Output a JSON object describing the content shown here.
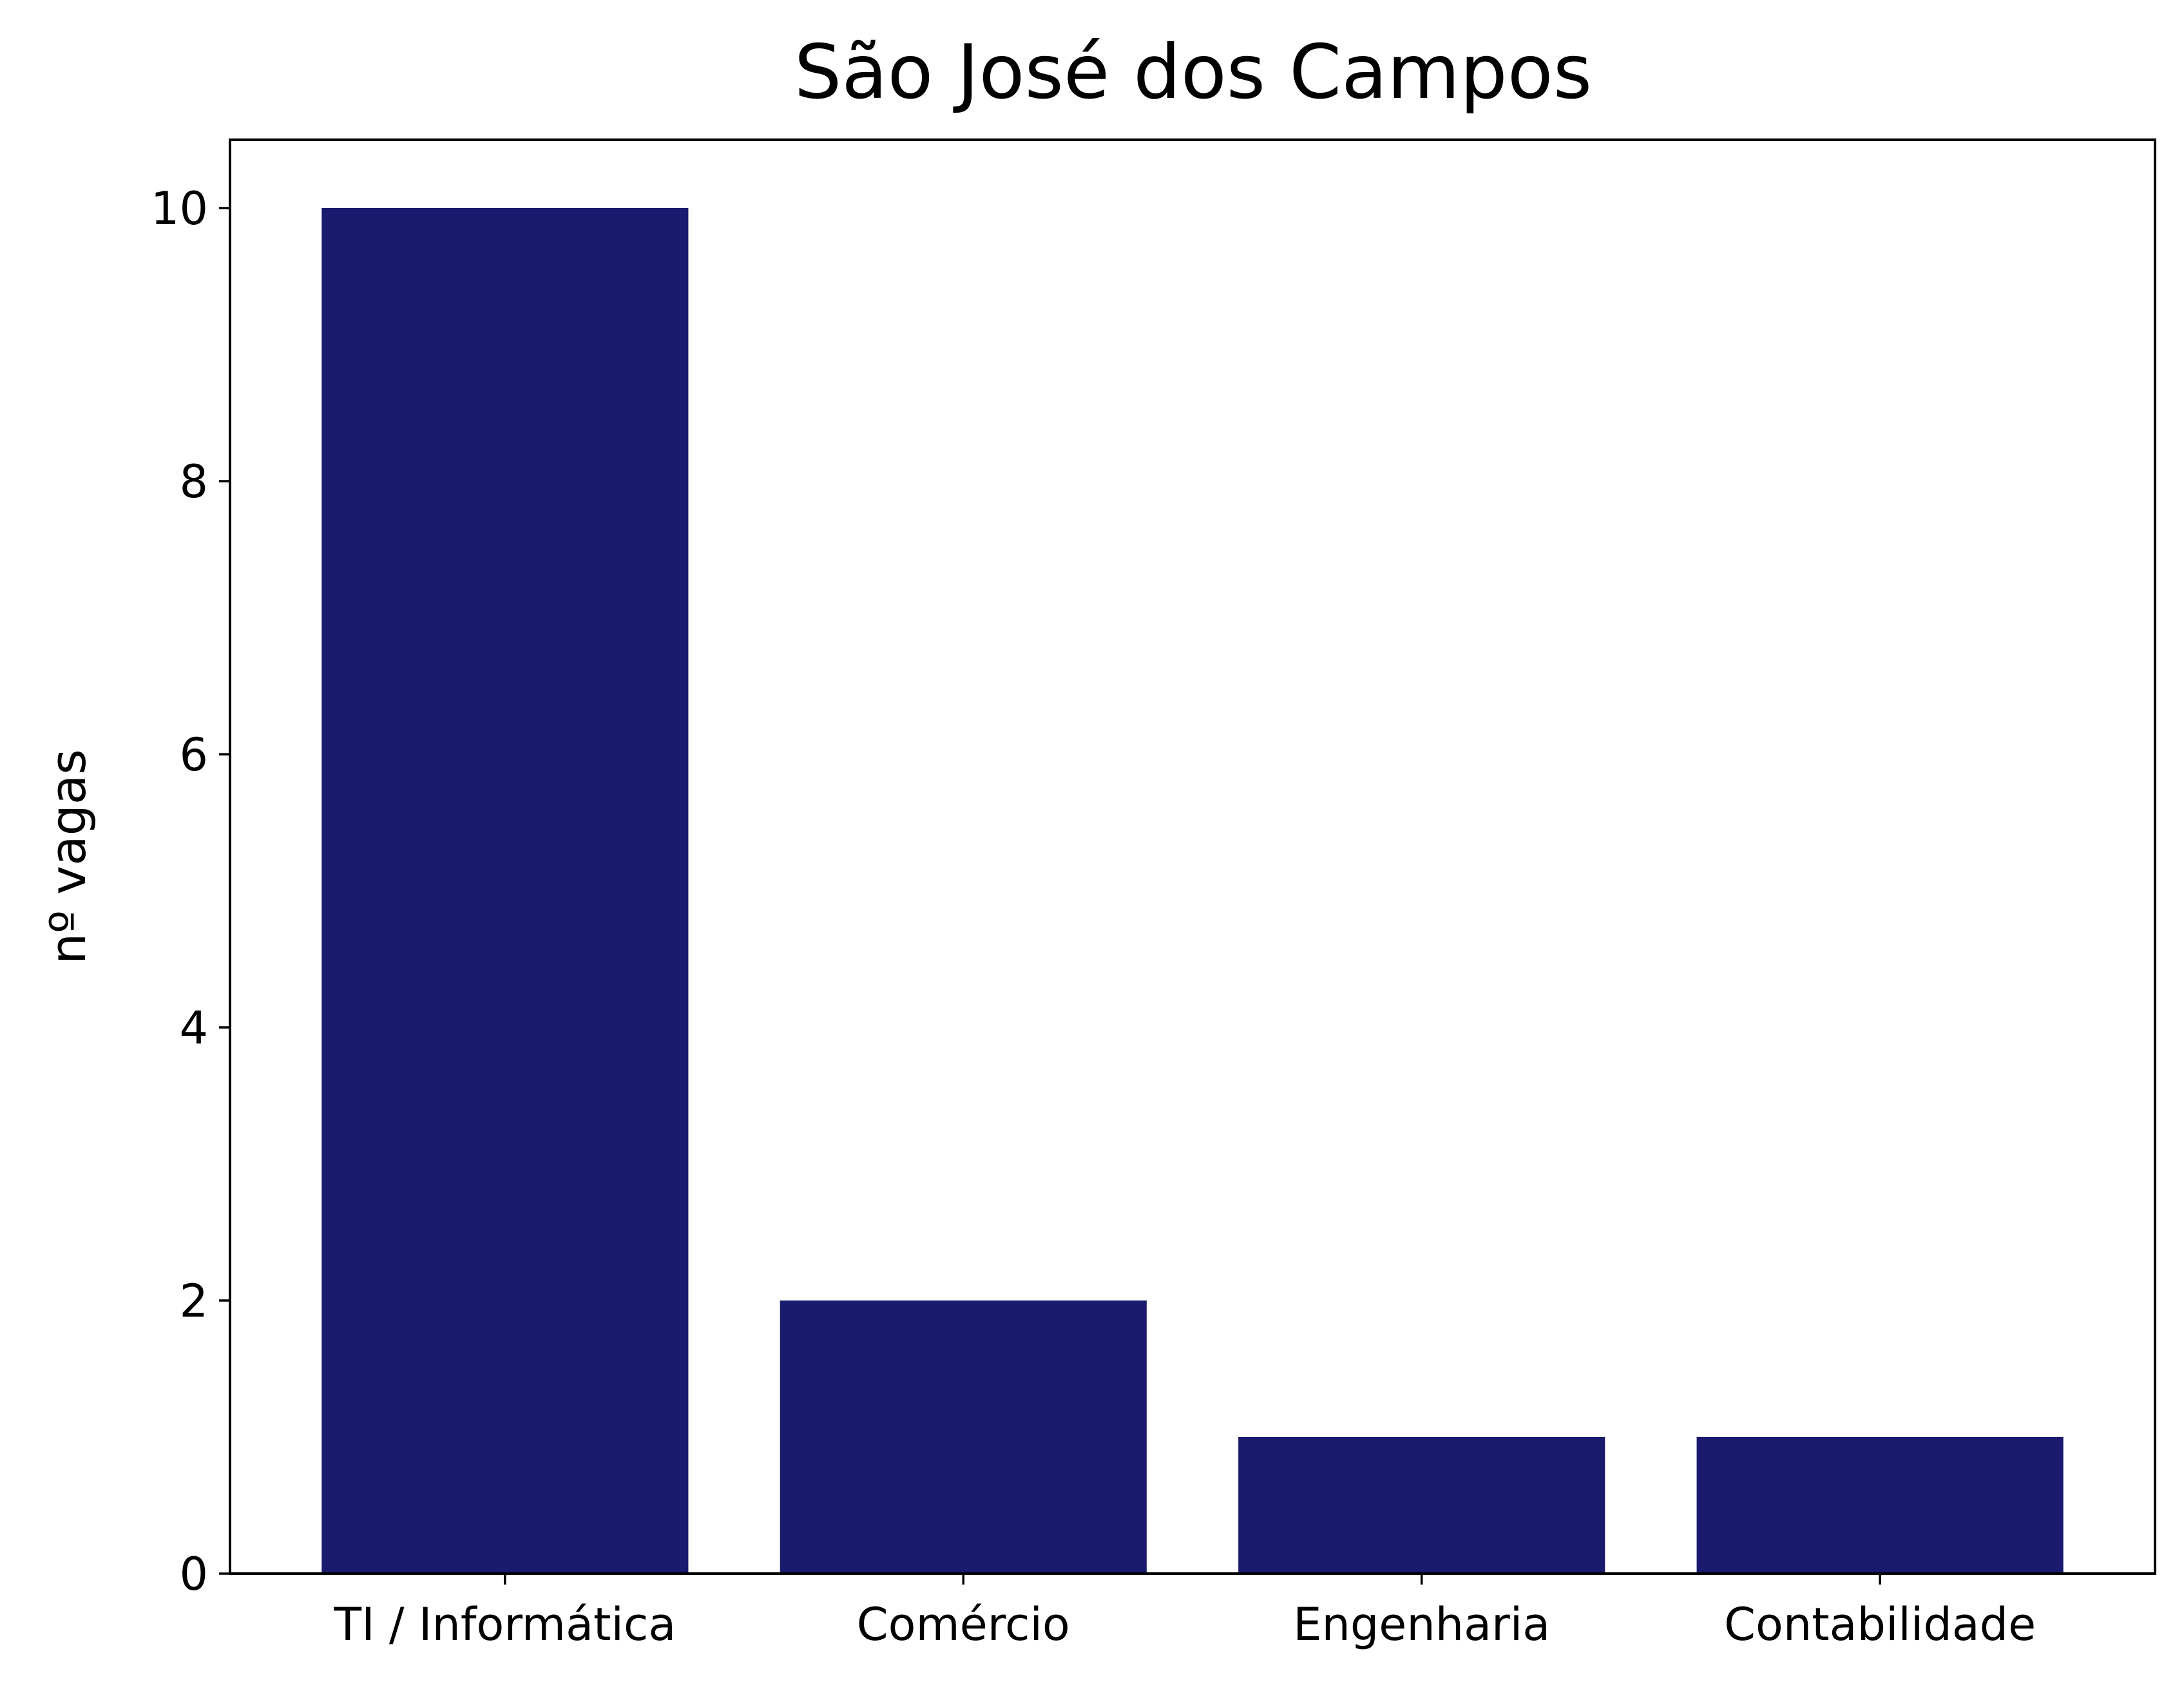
{
  "chart_data": {
    "type": "bar",
    "title": "São José dos Campos",
    "xlabel": "",
    "ylabel": "nº vagas",
    "categories": [
      "TI / Informática",
      "Comércio",
      "Engenharia",
      "Contabilidade"
    ],
    "values": [
      10,
      2,
      1,
      1
    ],
    "ylim": [
      0,
      10.5
    ],
    "yticks": [
      "0",
      "2",
      "4",
      "6",
      "8",
      "10"
    ],
    "bar_color": "#1a1a6e",
    "grid": false,
    "legend": "none"
  }
}
